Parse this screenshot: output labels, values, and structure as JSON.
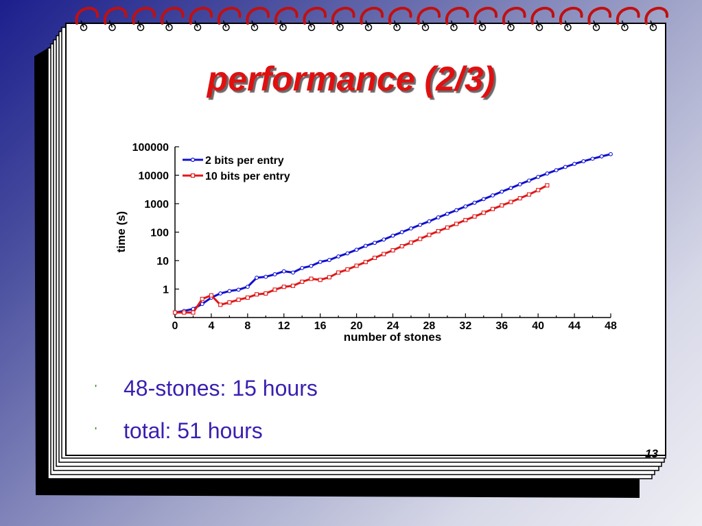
{
  "slide": {
    "title": "performance  (2/3)",
    "bullets": [
      "48-stones: 15 hours",
      "total:  51 hours"
    ],
    "bullet_symbol": "'",
    "page_number": "13"
  },
  "colors": {
    "title": "#e01010",
    "bullet_text": "#3a1fb0",
    "series_2bits": "#1010d0",
    "series_10bits": "#e01818"
  },
  "chart_data": {
    "type": "line",
    "xlabel": "number of stones",
    "ylabel": "time (s)",
    "xlim": [
      0,
      48
    ],
    "ylim": [
      0.1,
      100000
    ],
    "yscale": "log",
    "x_ticks": [
      0,
      4,
      8,
      12,
      16,
      20,
      24,
      28,
      32,
      36,
      40,
      44,
      48
    ],
    "y_ticks": [
      1,
      10,
      100,
      1000,
      10000,
      100000
    ],
    "y_tick_labels": [
      "1",
      "10",
      "100",
      "1000",
      "10000",
      "100000"
    ],
    "legend_position": "top-left",
    "series": [
      {
        "name": "2 bits per entry",
        "color": "#1010d0",
        "marker": "circle",
        "x": [
          0,
          1,
          2,
          3,
          4,
          5,
          6,
          7,
          8,
          9,
          10,
          11,
          12,
          13,
          14,
          15,
          16,
          17,
          18,
          19,
          20,
          21,
          22,
          23,
          24,
          25,
          26,
          27,
          28,
          29,
          30,
          31,
          32,
          33,
          34,
          35,
          36,
          37,
          38,
          39,
          40,
          41,
          42,
          43,
          44,
          45,
          46,
          47,
          48
        ],
        "y": [
          0.15,
          0.17,
          0.2,
          0.3,
          0.5,
          0.7,
          0.85,
          0.95,
          1.2,
          2.5,
          2.7,
          3.3,
          4.2,
          3.8,
          5.5,
          6.5,
          9,
          10.5,
          14,
          18,
          24,
          33,
          42,
          55,
          75,
          100,
          135,
          180,
          240,
          330,
          440,
          590,
          800,
          1080,
          1450,
          1950,
          2650,
          3550,
          4800,
          6500,
          8700,
          11500,
          15000,
          19500,
          25000,
          31000,
          38000,
          46000,
          55000
        ]
      },
      {
        "name": "10 bits per entry",
        "color": "#e01818",
        "marker": "square",
        "x": [
          0,
          1,
          2,
          3,
          4,
          5,
          6,
          7,
          8,
          9,
          10,
          11,
          12,
          13,
          14,
          15,
          16,
          17,
          18,
          19,
          20,
          21,
          22,
          23,
          24,
          25,
          26,
          27,
          28,
          29,
          30,
          31,
          32,
          33,
          34,
          35,
          36,
          37,
          38,
          39,
          40,
          41
        ],
        "y": [
          0.15,
          0.15,
          0.15,
          0.45,
          0.6,
          0.28,
          0.34,
          0.42,
          0.5,
          0.65,
          0.7,
          0.95,
          1.2,
          1.3,
          1.8,
          2.3,
          2.1,
          2.6,
          3.8,
          4.9,
          6.6,
          8.9,
          12.5,
          17,
          23,
          32,
          43,
          58,
          80,
          108,
          145,
          195,
          265,
          355,
          480,
          650,
          870,
          1150,
          1550,
          2100,
          3000,
          4400
        ]
      }
    ]
  }
}
